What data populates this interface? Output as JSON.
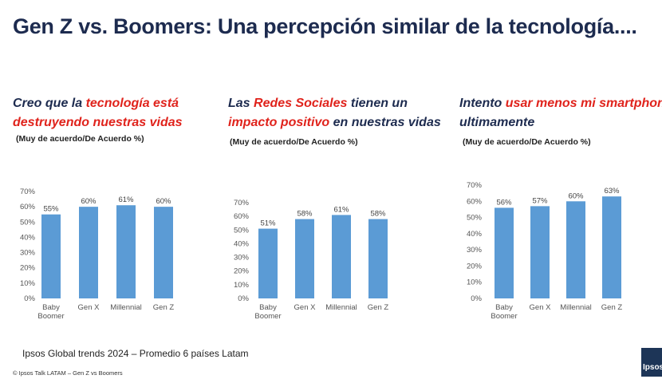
{
  "title": "Gen Z vs. Boomers: Una percepción similar de la tecnología....",
  "panels": [
    {
      "heading_parts": [
        {
          "text": "Creo que la ",
          "hl": false
        },
        {
          "text": "tecnología está destruyendo nuestras vidas",
          "hl": true
        }
      ],
      "subtitle": "(Muy de acuerdo/De Acuerdo %)"
    },
    {
      "heading_parts": [
        {
          "text": "Las ",
          "hl": false
        },
        {
          "text": "Redes Sociales",
          "hl": true
        },
        {
          "text": " tienen un ",
          "hl": false
        },
        {
          "text": "impacto positivo",
          "hl": true
        },
        {
          "text": " en nuestras vidas",
          "hl": false
        }
      ],
      "subtitle": "(Muy de acuerdo/De Acuerdo %)"
    },
    {
      "heading_parts": [
        {
          "text": "Intento ",
          "hl": false
        },
        {
          "text": "usar menos mi smartphone",
          "hl": true
        },
        {
          "text": " ultimamente",
          "hl": false
        }
      ],
      "subtitle": "(Muy de acuerdo/De Acuerdo %)"
    }
  ],
  "chart_data": [
    {
      "type": "bar",
      "categories": [
        [
          "Baby",
          "Boomer"
        ],
        [
          "Gen X"
        ],
        [
          "Millennial"
        ],
        [
          "Gen Z"
        ]
      ],
      "values": [
        55,
        60,
        61,
        60
      ],
      "value_labels": [
        "55%",
        "60%",
        "61%",
        "60%"
      ],
      "yticks": [
        "0%",
        "10%",
        "20%",
        "30%",
        "40%",
        "50%",
        "60%",
        "70%"
      ],
      "ylim": [
        0,
        70
      ],
      "grid": false,
      "color": "#5b9bd5"
    },
    {
      "type": "bar",
      "categories": [
        [
          "Baby",
          "Boomer"
        ],
        [
          "Gen X"
        ],
        [
          "Millennial"
        ],
        [
          "Gen Z"
        ]
      ],
      "values": [
        51,
        58,
        61,
        58
      ],
      "value_labels": [
        "51%",
        "58%",
        "61%",
        "58%"
      ],
      "yticks": [
        "0%",
        "10%",
        "20%",
        "30%",
        "40%",
        "50%",
        "60%",
        "70%"
      ],
      "ylim": [
        0,
        70
      ],
      "grid": false,
      "color": "#5b9bd5"
    },
    {
      "type": "bar",
      "categories": [
        [
          "Baby",
          "Boomer"
        ],
        [
          "Gen X"
        ],
        [
          "Millennial"
        ],
        [
          "Gen Z"
        ]
      ],
      "values": [
        56,
        57,
        60,
        63
      ],
      "value_labels": [
        "56%",
        "57%",
        "60%",
        "63%"
      ],
      "yticks": [
        "0%",
        "10%",
        "20%",
        "30%",
        "40%",
        "50%",
        "60%",
        "70%"
      ],
      "ylim": [
        0,
        70
      ],
      "grid": false,
      "color": "#5b9bd5"
    }
  ],
  "footer": "Ipsos Global trends 2024 – Promedio 6 países Latam",
  "copyright": "© Ipsos Talk LATAM – Gen Z vs Boomers",
  "logo_text": "Ipsos"
}
